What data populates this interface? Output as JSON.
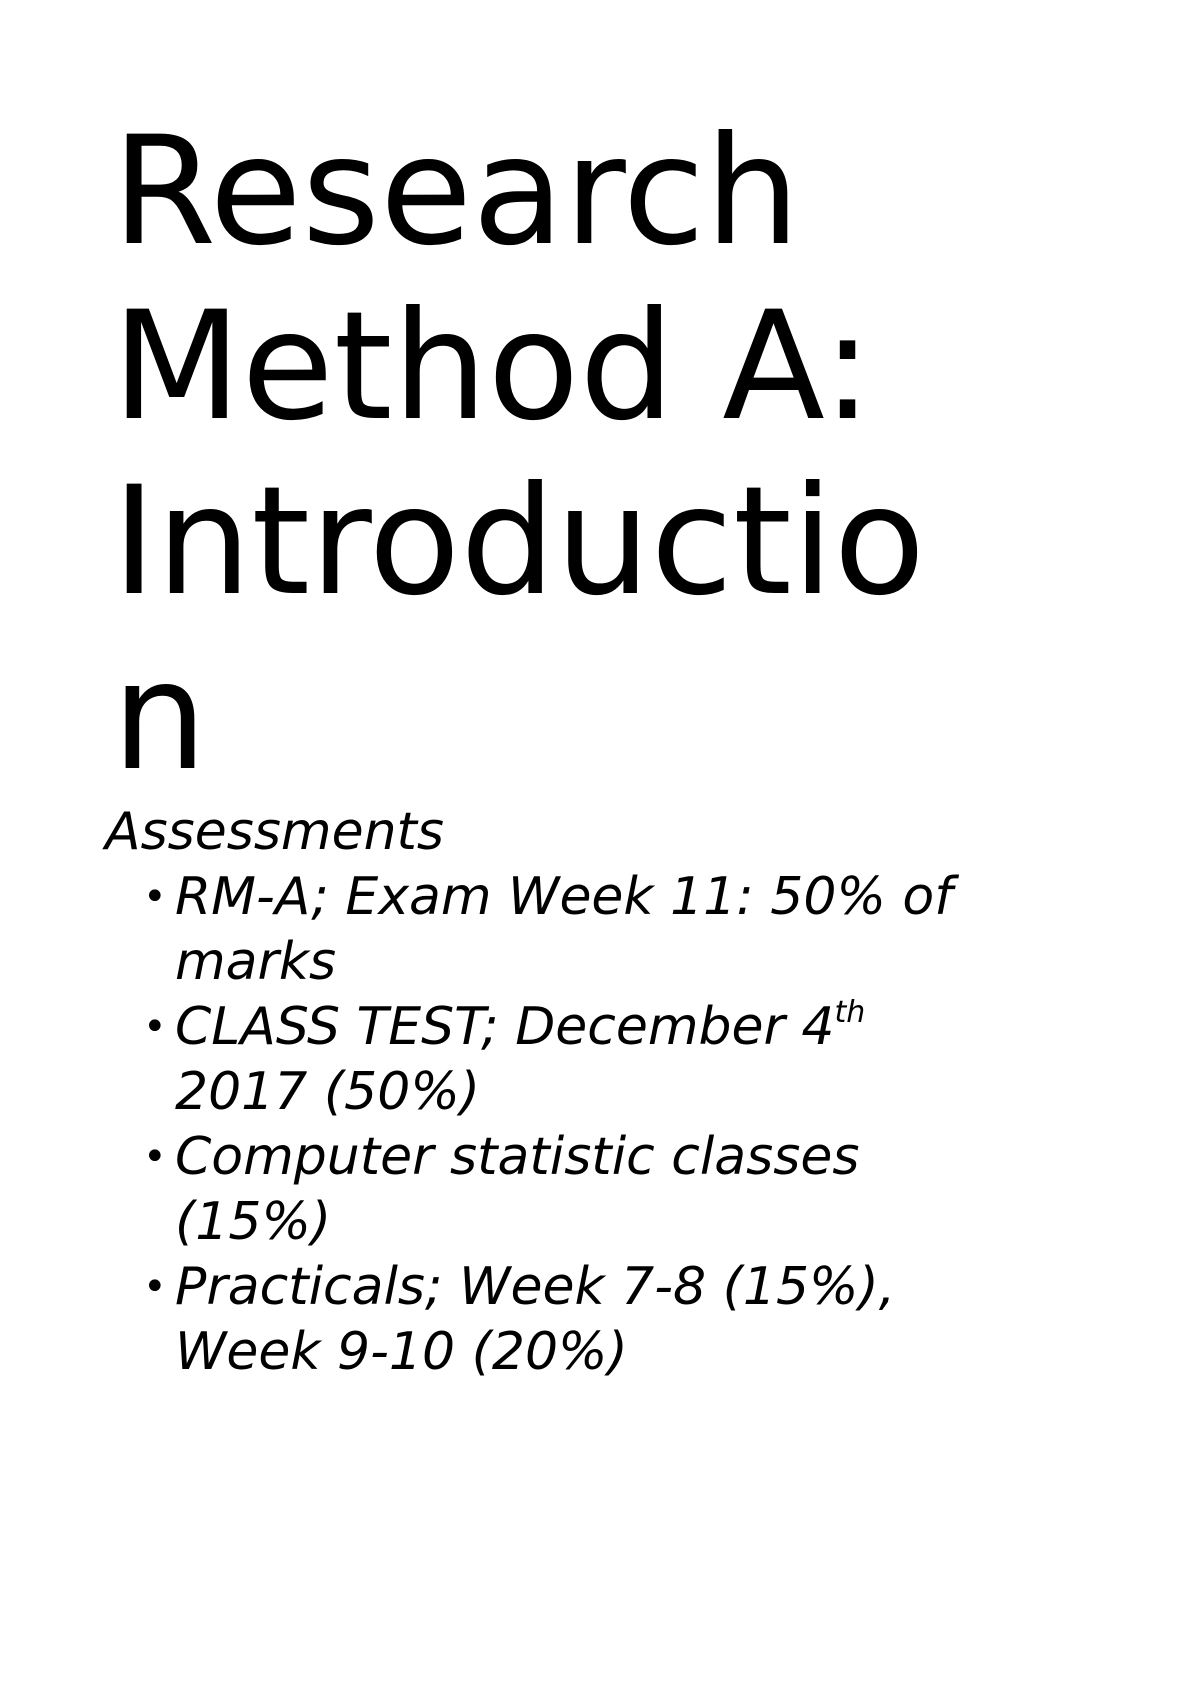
{
  "title_lines": [
    "Research",
    "Method A:",
    "Introductio",
    "n"
  ],
  "section": {
    "heading": "Assessments",
    "items": [
      {
        "text": "RM-A; Exam Week 11: 50% of marks"
      },
      {
        "text": "CLASS TEST; December 4",
        "sup": "th",
        "text_after": " 2017 (50%)"
      },
      {
        "text": "Computer statistic classes (15%)"
      },
      {
        "text": "Practicals; Week 7-8 (15%), Week 9-10 (20%)"
      }
    ],
    "bullet_glyph": "•"
  }
}
